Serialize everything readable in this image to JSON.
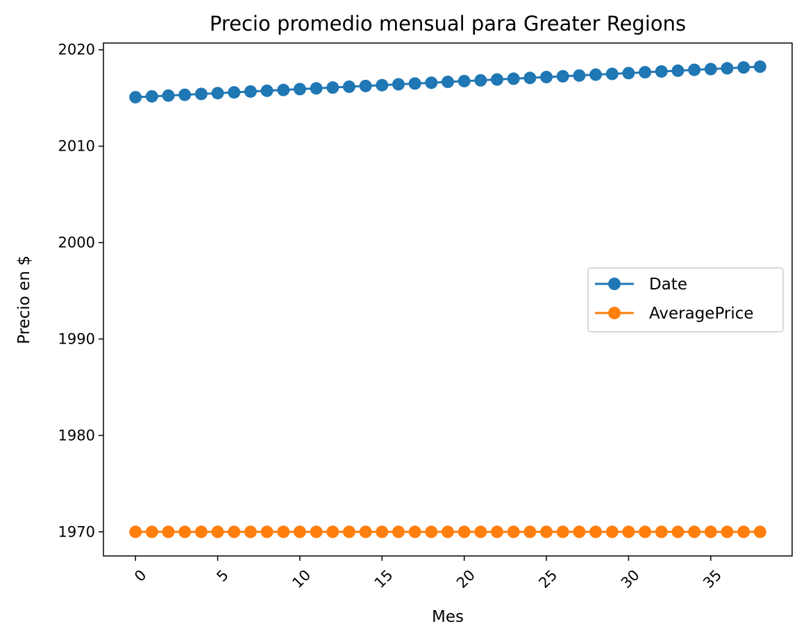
{
  "chart_data": {
    "type": "line",
    "title": "Precio promedio mensual para Greater Regions",
    "xlabel": "Mes",
    "ylabel": "Precio en $",
    "xlim": [
      -1.95,
      39.95
    ],
    "ylim": [
      1967.5,
      2020.7
    ],
    "xticks": [
      0,
      5,
      10,
      15,
      20,
      25,
      30,
      35
    ],
    "yticks": [
      1970,
      1980,
      1990,
      2000,
      2010,
      2020
    ],
    "grid": false,
    "legend_location": "center-right",
    "x": [
      0,
      1,
      2,
      3,
      4,
      5,
      6,
      7,
      8,
      9,
      10,
      11,
      12,
      13,
      14,
      15,
      16,
      17,
      18,
      19,
      20,
      21,
      22,
      23,
      24,
      25,
      26,
      27,
      28,
      29,
      30,
      31,
      32,
      33,
      34,
      35,
      36,
      37,
      38
    ],
    "series": [
      {
        "name": "Date",
        "color": "#1f77b4",
        "marker": "circle",
        "values": [
          2015.08,
          2015.17,
          2015.25,
          2015.33,
          2015.42,
          2015.5,
          2015.58,
          2015.67,
          2015.75,
          2015.83,
          2015.92,
          2016.0,
          2016.08,
          2016.17,
          2016.25,
          2016.33,
          2016.42,
          2016.5,
          2016.58,
          2016.67,
          2016.75,
          2016.83,
          2016.92,
          2017.0,
          2017.08,
          2017.17,
          2017.25,
          2017.33,
          2017.42,
          2017.5,
          2017.58,
          2017.67,
          2017.75,
          2017.83,
          2017.92,
          2018.0,
          2018.08,
          2018.17,
          2018.25
        ]
      },
      {
        "name": "AveragePrice",
        "color": "#ff7f0e",
        "marker": "circle",
        "values": [
          1970,
          1970,
          1970,
          1970,
          1970,
          1970,
          1970,
          1970,
          1970,
          1970,
          1970,
          1970,
          1970,
          1970,
          1970,
          1970,
          1970,
          1970,
          1970,
          1970,
          1970,
          1970,
          1970,
          1970,
          1970,
          1970,
          1970,
          1970,
          1970,
          1970,
          1970,
          1970,
          1970,
          1970,
          1970,
          1970,
          1970,
          1970,
          1970
        ]
      }
    ]
  }
}
